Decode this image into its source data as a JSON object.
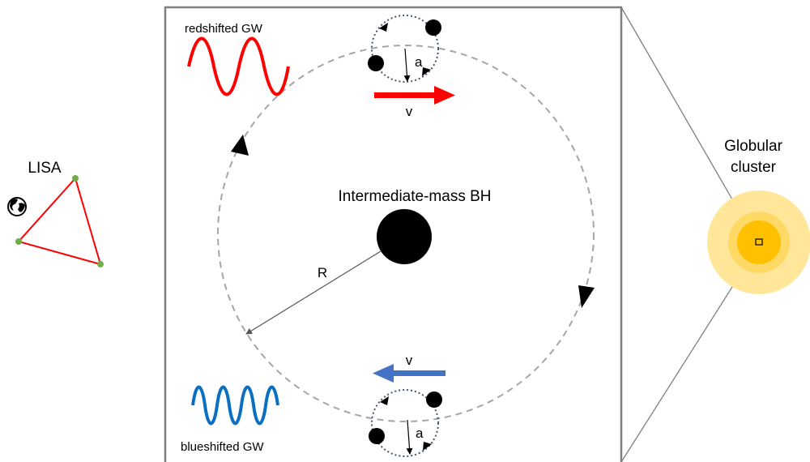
{
  "detector": {
    "label": "LISA"
  },
  "central_bh": {
    "label": "Intermediate-mass BH"
  },
  "orbit": {
    "radius_label": "R"
  },
  "binary": {
    "separation_label": "a"
  },
  "velocity": {
    "label": "v"
  },
  "waves": {
    "redshifted_label": "redshifted GW",
    "blueshifted_label": "blueshifted GW",
    "redshift_color": "#ff0000",
    "blueshift_color": "#0a6fc2",
    "arrow_blue_color": "#4472c4"
  },
  "cluster": {
    "label_line1": "Globular",
    "label_line2": "cluster"
  },
  "icons": {
    "earth": "earth-globe-icon"
  }
}
